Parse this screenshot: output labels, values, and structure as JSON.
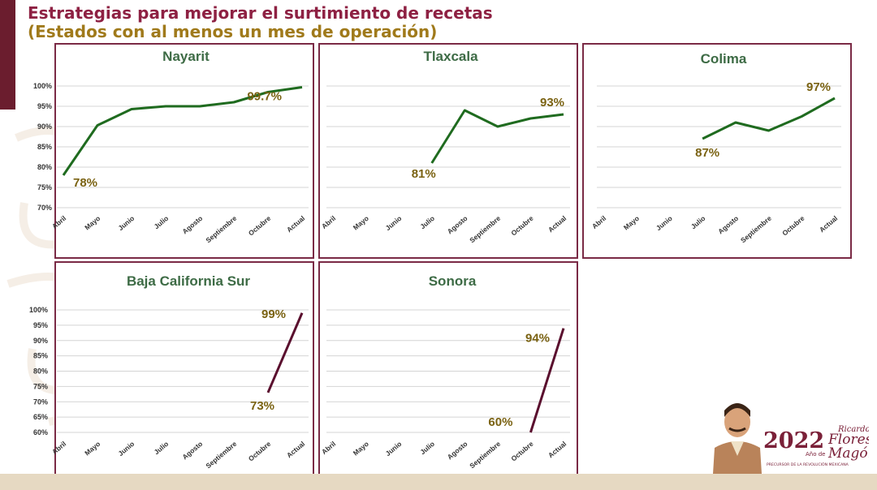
{
  "title": {
    "line1": "Estrategias para mejorar el surtimiento de recetas",
    "line2": "(Estados con al menos un mes de operación)"
  },
  "logo": {
    "year": "2022",
    "ano_de": "Año de",
    "name_line1": "Ricardo",
    "name_line2": "Flores",
    "name_line3": "Magón",
    "subtitle": "PRECURSOR DE LA REVOLUCIÓN MEXICANA"
  },
  "colors": {
    "title": "#8e2143",
    "subtitle": "#a07a1b",
    "panel_border": "#7a2a45",
    "state_title": "#3d6b45",
    "line_green": "#1f6b1f",
    "line_maroon": "#5a0f2e",
    "label_gold": "#7a6212"
  },
  "chart_data": [
    {
      "type": "line",
      "title": "Nayarit",
      "categories": [
        "Abril",
        "Mayo",
        "Junio",
        "Julio",
        "Agosto",
        "Septiembre",
        "Octubre",
        "Actual"
      ],
      "series": [
        {
          "values": [
            78,
            90.3,
            94.3,
            95,
            95,
            96,
            98.5,
            99.7
          ]
        }
      ],
      "yticks": [
        "100%",
        "95%",
        "90%",
        "85%",
        "80%",
        "75%",
        "70%"
      ],
      "ylim": [
        70,
        100
      ],
      "grid": true,
      "data_labels": [
        {
          "index": 0,
          "text": "78%"
        },
        {
          "index": 7,
          "text": "99.7%"
        }
      ]
    },
    {
      "type": "line",
      "title": "Tlaxcala",
      "categories": [
        "Abril",
        "Mayo",
        "Junio",
        "Julio",
        "Agosto",
        "Septiembre",
        "Octubre",
        "Actual"
      ],
      "series": [
        {
          "values": [
            null,
            null,
            null,
            81,
            94,
            90,
            92,
            93
          ]
        }
      ],
      "ylim": [
        70,
        100
      ],
      "grid": true,
      "data_labels": [
        {
          "index": 3,
          "text": "81%"
        },
        {
          "index": 7,
          "text": "93%"
        }
      ]
    },
    {
      "type": "line",
      "title": "Colima",
      "categories": [
        "Abril",
        "Mayo",
        "Junio",
        "Julio",
        "Agosto",
        "Septiembre",
        "Octubre",
        "Actual"
      ],
      "series": [
        {
          "values": [
            null,
            null,
            null,
            87,
            91,
            89,
            92.5,
            97
          ]
        }
      ],
      "ylim": [
        70,
        100
      ],
      "grid": true,
      "data_labels": [
        {
          "index": 3,
          "text": "87%"
        },
        {
          "index": 7,
          "text": "97%"
        }
      ]
    },
    {
      "type": "line",
      "title": "Baja California Sur",
      "categories": [
        "Abril",
        "Mayo",
        "Junio",
        "Julio",
        "Agosto",
        "Septiembre",
        "Octubre",
        "Actual"
      ],
      "series": [
        {
          "values": [
            null,
            null,
            null,
            null,
            null,
            null,
            73,
            99
          ]
        }
      ],
      "yticks": [
        "100%",
        "95%",
        "90%",
        "85%",
        "80%",
        "75%",
        "70%",
        "65%",
        "60%"
      ],
      "ylim": [
        60,
        100
      ],
      "grid": true,
      "data_labels": [
        {
          "index": 6,
          "text": "73%"
        },
        {
          "index": 7,
          "text": "99%"
        }
      ]
    },
    {
      "type": "line",
      "title": "Sonora",
      "categories": [
        "Abril",
        "Mayo",
        "Junio",
        "Julio",
        "Agosto",
        "Septiembre",
        "Octubre",
        "Actual"
      ],
      "series": [
        {
          "values": [
            null,
            null,
            null,
            null,
            null,
            null,
            60,
            94
          ]
        }
      ],
      "ylim": [
        60,
        100
      ],
      "grid": true,
      "data_labels": [
        {
          "index": 6,
          "text": "60%"
        },
        {
          "index": 7,
          "text": "94%"
        }
      ]
    }
  ]
}
